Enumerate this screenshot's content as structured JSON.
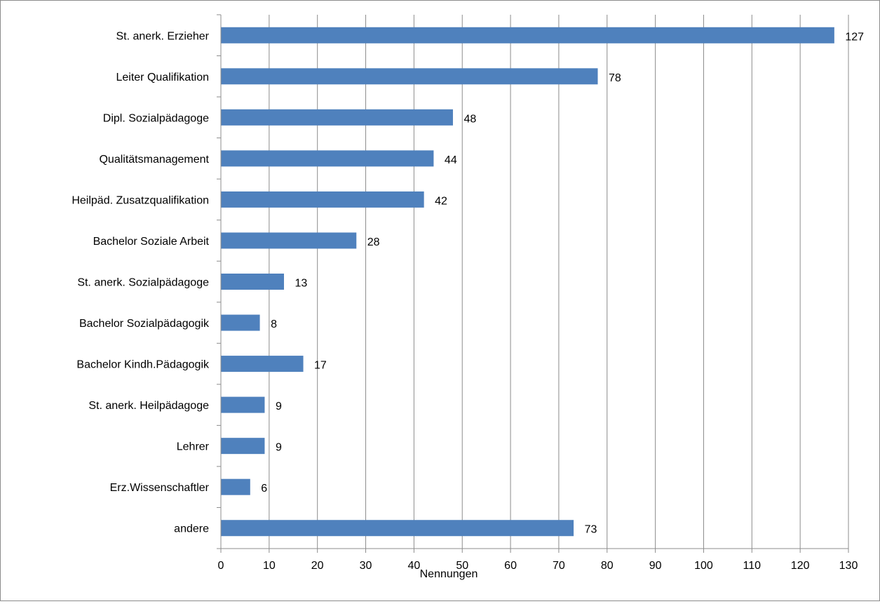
{
  "chart_data": {
    "type": "bar",
    "orientation": "horizontal",
    "categories": [
      "St. anerk. Erzieher",
      "Leiter Qualifikation",
      "Dipl. Sozialpädagoge",
      "Qualitätsmanagement",
      "Heilpäd. Zusatzqualifikation",
      "Bachelor Soziale Arbeit",
      "St. anerk. Sozialpädagoge",
      "Bachelor Sozialpädagogik",
      "Bachelor Kindh.Pädagogik",
      "St. anerk. Heilpädagoge",
      "Lehrer",
      "Erz.Wissenschaftler",
      "andere"
    ],
    "values": [
      127,
      78,
      48,
      44,
      42,
      28,
      13,
      8,
      17,
      9,
      9,
      6,
      73
    ],
    "xlabel": "Nennungen",
    "ylabel": "",
    "xlim": [
      0,
      130
    ],
    "xticks": [
      0,
      10,
      20,
      30,
      40,
      50,
      60,
      70,
      80,
      90,
      100,
      110,
      120,
      130
    ],
    "grid": "vertical",
    "data_labels": true,
    "legend": "none",
    "bar_color": "#4f81bd",
    "grid_color": "#8c8c8c"
  }
}
